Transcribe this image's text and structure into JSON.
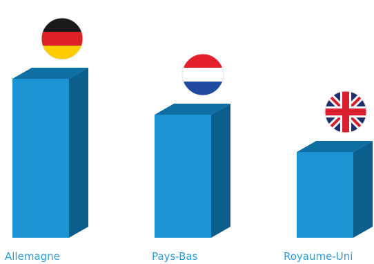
{
  "chart_data": {
    "type": "bar",
    "categories": [
      "Allemagne",
      "Pays-Bas",
      "Royaume-Uni"
    ],
    "values": [
      230,
      178,
      124
    ],
    "title": "",
    "xlabel": "",
    "ylabel": "",
    "grid": false,
    "legend": "none",
    "category_icons": [
      "germany-flag-icon",
      "netherlands-flag-icon",
      "united-kingdom-flag-icon"
    ],
    "colors": {
      "bar_front": "#1e93d3",
      "bar_top": "#0f6fa3",
      "bar_side": "#0b5f8d",
      "label": "#2f9bd4"
    }
  }
}
